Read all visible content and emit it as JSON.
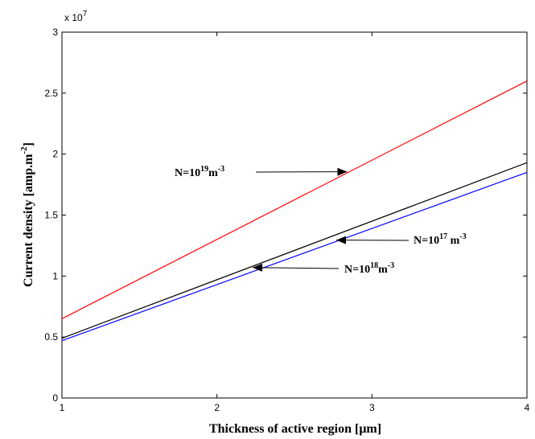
{
  "chart_data": {
    "type": "line",
    "xlabel": "Thickness of active region [μm]",
    "ylabel_text": "Current density [amp.m",
    "ylabel_sup": "-2",
    "ylabel_close": "]",
    "y_multiplier": "x 10",
    "y_multiplier_exp": "7",
    "xlim": [
      1,
      4
    ],
    "ylim": [
      0,
      3
    ],
    "xticks": [
      1,
      2,
      3,
      4
    ],
    "yticks": [
      0,
      0.5,
      1,
      1.5,
      2,
      2.5,
      3
    ],
    "grid": false,
    "series": [
      {
        "color": "#ff0000",
        "x": [
          1,
          4
        ],
        "y": [
          0.65,
          2.6
        ]
      },
      {
        "color": "#000000",
        "x": [
          1,
          4
        ],
        "y": [
          0.49,
          1.93
        ]
      },
      {
        "color": "#0000ff",
        "x": [
          1,
          4
        ],
        "y": [
          0.47,
          1.85
        ]
      }
    ],
    "annotations": [
      {
        "prefix": "N=10",
        "exp1": "19",
        "unit": "m",
        "exp2": "-3",
        "color": "#ff0000",
        "arrow_to": [
          2.84,
          1.855
        ]
      },
      {
        "prefix": "N=10",
        "exp1": "17",
        "unit": " m",
        "exp2": "-3",
        "color": "#000000",
        "arrow_to": [
          2.77,
          1.295
        ]
      },
      {
        "prefix": "N=10",
        "exp1": "18",
        "unit": "m",
        "exp2": "-3",
        "color": "#0000ff",
        "arrow_to": [
          2.23,
          1.07
        ]
      }
    ]
  }
}
